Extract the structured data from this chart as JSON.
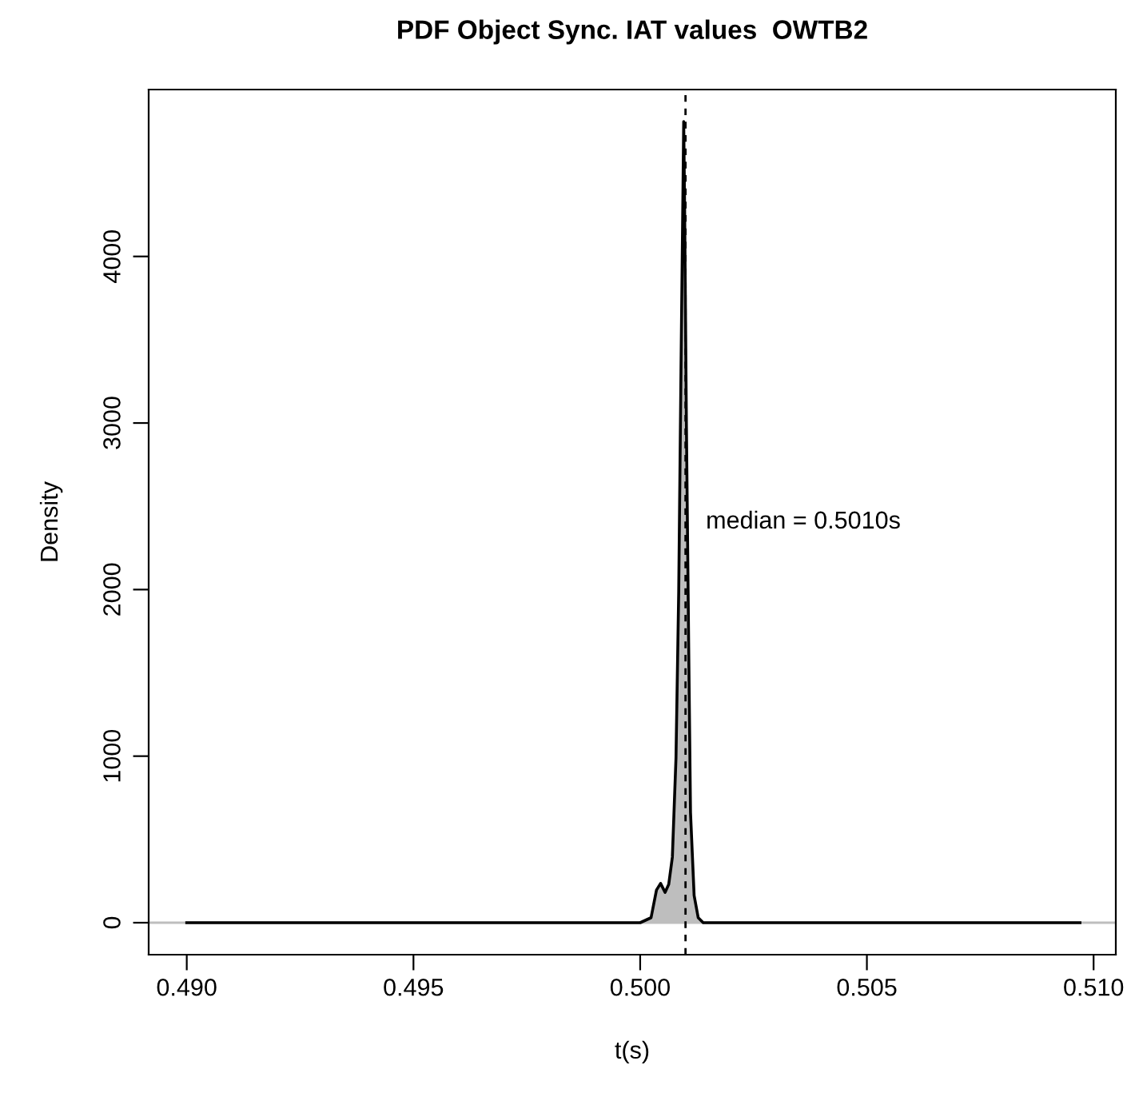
{
  "chart_data": {
    "type": "area",
    "title": "PDF Object Sync. IAT values  OWTB2",
    "xlabel": "t(s)",
    "ylabel": "Density",
    "x": [
      0.49,
      0.492,
      0.494,
      0.496,
      0.498,
      0.499,
      0.4995,
      0.5,
      0.50024,
      0.50036,
      0.50045,
      0.50055,
      0.50063,
      0.50071,
      0.50079,
      0.50085,
      0.5009,
      0.50094,
      0.50096,
      0.50098,
      0.50102,
      0.50107,
      0.50111,
      0.50119,
      0.50128,
      0.50139,
      0.5016,
      0.502,
      0.503,
      0.5045,
      0.506,
      0.508,
      0.5097
    ],
    "series": [
      {
        "color": "#bebebe",
        "values": [
          0,
          0,
          0,
          0,
          0,
          0,
          0,
          0,
          30,
          196,
          236,
          182,
          230,
          394,
          990,
          1986,
          3310,
          4300,
          4810,
          4300,
          2975,
          1652,
          662,
          163,
          30,
          0,
          0,
          0,
          0,
          0,
          0,
          0,
          0
        ]
      }
    ],
    "xlim": [
      0.48916,
      0.51049
    ],
    "ylim": [
      -192,
      5002
    ],
    "xticks": [
      {
        "value": 0.49,
        "label": "0.490"
      },
      {
        "value": 0.495,
        "label": "0.495"
      },
      {
        "value": 0.5,
        "label": "0.500"
      },
      {
        "value": 0.505,
        "label": "0.505"
      },
      {
        "value": 0.51,
        "label": "0.510"
      }
    ],
    "yticks": [
      0,
      1000,
      2000,
      3000,
      4000
    ],
    "ref_lines": [
      {
        "axis": "y",
        "value": 0,
        "color": "#bebebe",
        "line_style": "solid"
      },
      {
        "axis": "x",
        "value": 0.501,
        "label": "median = 0.5010s",
        "color": "#000000",
        "line_style": "dashed"
      }
    ],
    "grid": false,
    "legend": false
  }
}
